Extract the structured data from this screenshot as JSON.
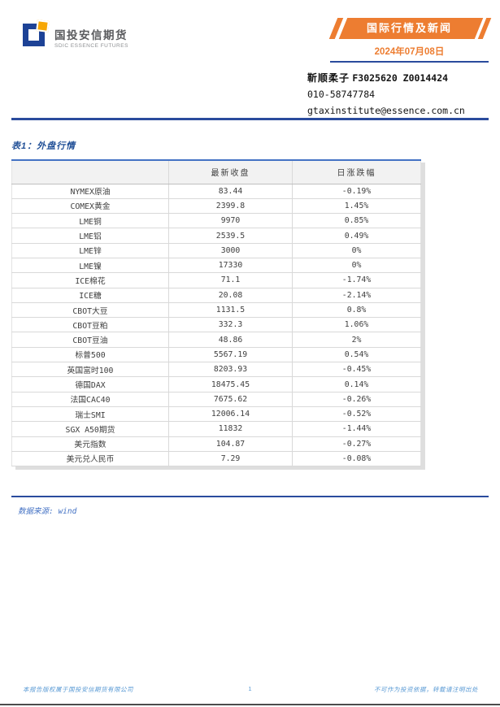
{
  "header": {
    "logo": {
      "company_cn": "国投安信期货",
      "company_en": "SDIC ESSENCE FUTURES"
    },
    "banner": {
      "label": "国际行情及新闻",
      "color": "#ed7d31"
    },
    "date": "2024年07月08日",
    "analyst": {
      "name": "靳顺柔子",
      "codes": "F3025620 Z0014424",
      "phone": "010-58747784",
      "email": "gtaxinstitute@essence.com.cn"
    }
  },
  "table_section": {
    "title": "表1：外盘行情",
    "columns": [
      "",
      "最新收盘",
      "日涨跌幅"
    ],
    "rows": [
      {
        "name": "NYMEX原油",
        "close": "83.44",
        "change": "-0.19%"
      },
      {
        "name": "COMEX黄金",
        "close": "2399.8",
        "change": "1.45%"
      },
      {
        "name": "LME铜",
        "close": "9970",
        "change": "0.85%"
      },
      {
        "name": "LME铝",
        "close": "2539.5",
        "change": "0.49%"
      },
      {
        "name": "LME锌",
        "close": "3000",
        "change": "0%"
      },
      {
        "name": "LME镍",
        "close": "17330",
        "change": "0%"
      },
      {
        "name": "ICE棉花",
        "close": "71.1",
        "change": "-1.74%"
      },
      {
        "name": "ICE糖",
        "close": "20.08",
        "change": "-2.14%"
      },
      {
        "name": "CBOT大豆",
        "close": "1131.5",
        "change": "0.8%"
      },
      {
        "name": "CBOT豆粕",
        "close": "332.3",
        "change": "1.06%"
      },
      {
        "name": "CBOT豆油",
        "close": "48.86",
        "change": "2%"
      },
      {
        "name": "标普500",
        "close": "5567.19",
        "change": "0.54%"
      },
      {
        "name": "英国富时100",
        "close": "8203.93",
        "change": "-0.45%"
      },
      {
        "name": "德国DAX",
        "close": "18475.45",
        "change": "0.14%"
      },
      {
        "name": "法国CAC40",
        "close": "7675.62",
        "change": "-0.26%"
      },
      {
        "name": "瑞士SMI",
        "close": "12006.14",
        "change": "-0.52%"
      },
      {
        "name": "SGX A50期货",
        "close": "11832",
        "change": "-1.44%"
      },
      {
        "name": "美元指数",
        "close": "104.87",
        "change": "-0.27%"
      },
      {
        "name": "美元兑人民币",
        "close": "7.29",
        "change": "-0.08%"
      }
    ],
    "source": "数据来源: wind"
  },
  "footer": {
    "left": "本报告版权属于国投安信期货有限公司",
    "page": "1",
    "right": "不可作为投资依据，转载请注明出处"
  },
  "colors": {
    "accent_orange": "#ed7d31",
    "accent_blue": "#2a4b9d",
    "table_top_border": "#4472c4",
    "footer_blue": "#5b9bd5",
    "title_blue": "#1f4e96"
  }
}
